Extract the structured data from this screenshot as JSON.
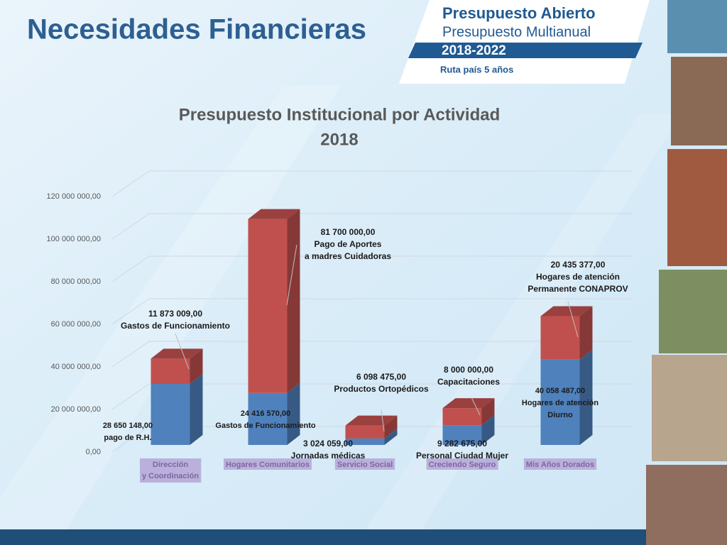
{
  "slide": {
    "title": "Necesidades Financieras",
    "logo": {
      "line1": "Presupuesto Abierto",
      "line2": "Presupuesto Multianual",
      "years": "2018-2022",
      "tagline": "Ruta país 5 años"
    }
  },
  "chart_data": {
    "type": "bar",
    "stacked": true,
    "title": "Presupuesto Institucional por Actividad",
    "subtitle": "2018",
    "categories": [
      "Dirección y Coordinación",
      "Hogares Comunitarios",
      "Servicio Social",
      "Creciendo Seguro",
      "Mis Años Dorados"
    ],
    "series": [
      {
        "color": "#4f81bd",
        "values": [
          28650148,
          24416570,
          3024059,
          9282675,
          40058487
        ],
        "value_labels": [
          "28 650 148,00",
          "24 416 570,00",
          "3 024 059,00",
          "9 282 675,00",
          "40 058 487,00"
        ],
        "annotations": [
          [
            "pago de R.H."
          ],
          [
            "Gastos de Funcionamiento"
          ],
          [
            "Jornadas médicas"
          ],
          [
            "Personal Ciudad Mujer"
          ],
          [
            "Hogares de atención",
            "Diurno"
          ]
        ]
      },
      {
        "color": "#c0504d",
        "values": [
          11873009,
          81700000,
          6098475,
          8000000,
          20435377
        ],
        "value_labels": [
          "11 873 009,00",
          "81 700 000,00",
          "6 098 475,00",
          "8 000 000,00",
          "20 435 377,00"
        ],
        "annotations": [
          [
            "Gastos de Funcionamiento"
          ],
          [
            "Pago de Aportes",
            "a madres Cuidadoras"
          ],
          [
            "Productos Ortopédicos"
          ],
          [
            "Capacitaciones"
          ],
          [
            "Hogares de atención",
            "Permanente CONAPROV"
          ]
        ]
      }
    ],
    "ylim": [
      0,
      120000000
    ],
    "yticks": [
      {
        "value": 0,
        "label": "0,00"
      },
      {
        "value": 20000000,
        "label": "20 000 000,00"
      },
      {
        "value": 40000000,
        "label": "40 000 000,00"
      },
      {
        "value": 60000000,
        "label": "60 000 000,00"
      },
      {
        "value": 80000000,
        "label": "80 000 000,00"
      },
      {
        "value": 100000000,
        "label": "100 000 000,00"
      },
      {
        "value": 120000000,
        "label": "120 000 000,00"
      }
    ],
    "grid": true
  }
}
